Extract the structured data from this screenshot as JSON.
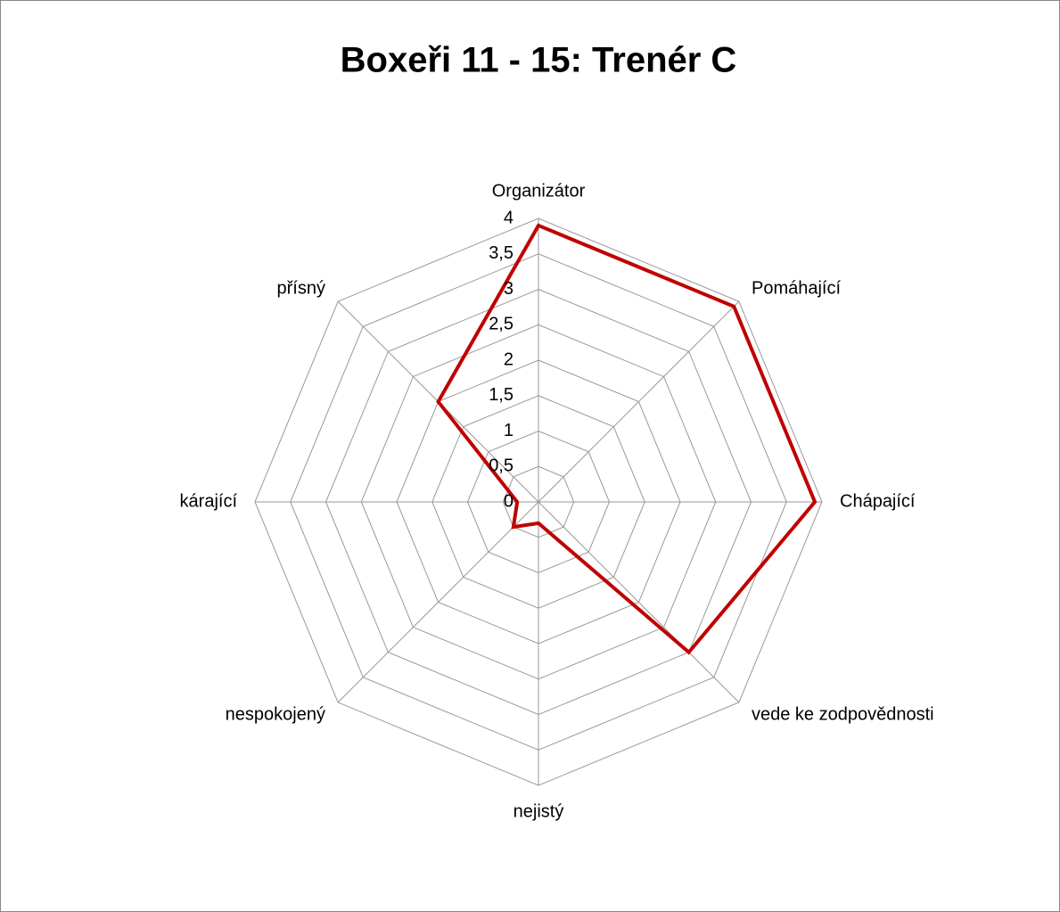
{
  "chart_data": {
    "type": "radar",
    "title": "Boxeři 11 - 15: Trenér C",
    "categories": [
      "Organizátor",
      "Pomáhající",
      "Chápající",
      "vede ke zodpovědnosti",
      "nejistý",
      "nespokojený",
      "kárající",
      "přísný"
    ],
    "series": [
      {
        "name": "Trenér C",
        "color": "#c00000",
        "values": [
          3.9,
          3.9,
          3.9,
          3.0,
          0.3,
          0.5,
          0.3,
          2.0
        ]
      }
    ],
    "ylim": [
      0,
      4
    ],
    "yticks": [
      0,
      {
        "value": 0.5,
        "label": "0,5"
      },
      1,
      {
        "value": 1.5,
        "label": "1,5"
      },
      2,
      {
        "value": 2.5,
        "label": "2,5"
      },
      3,
      {
        "value": 3.5,
        "label": "3,5"
      },
      4
    ],
    "grid": true
  }
}
